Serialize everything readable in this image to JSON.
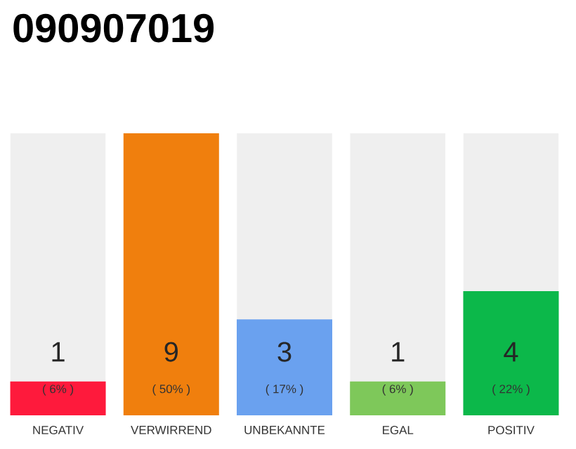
{
  "chart_data": {
    "type": "bar",
    "title": "090907019",
    "categories": [
      "NEGATIV",
      "VERWIRREND",
      "UNBEKANNTE",
      "EGAL",
      "POSITIV"
    ],
    "values": [
      6,
      50,
      17,
      6,
      22
    ],
    "colors": [
      "#fe1a3c",
      "#f07f0d",
      "#6aa1ef",
      "#7ec85a",
      "#0cb84a"
    ],
    "value_labels": [
      "( 6% )",
      "( 50% )",
      "( 17% )",
      "( 6% )",
      "( 22% )"
    ],
    "annotations": [
      "1",
      "9",
      "3",
      "1",
      "4"
    ]
  }
}
